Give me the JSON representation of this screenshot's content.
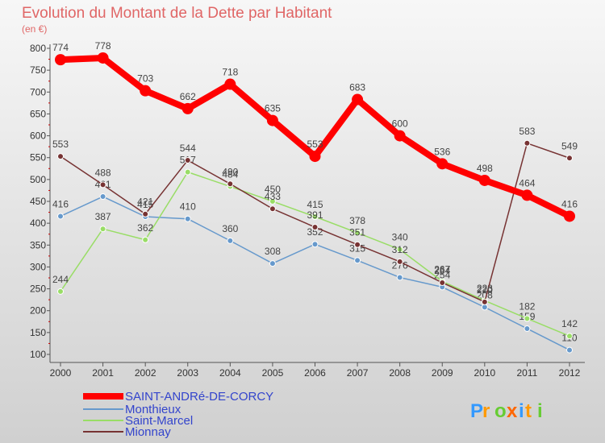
{
  "chart_data": {
    "type": "line",
    "title": "Evolution du Montant de la Dette par Habitant",
    "subtitle": "(en €)",
    "x": [
      "2000",
      "2001",
      "2002",
      "2003",
      "2004",
      "2005",
      "2006",
      "2007",
      "2008",
      "2009",
      "2010",
      "2011",
      "2012"
    ],
    "ylim": [
      100,
      800
    ],
    "yticks": [
      100,
      150,
      200,
      250,
      300,
      350,
      400,
      450,
      500,
      550,
      600,
      650,
      700,
      750,
      800
    ],
    "grid": false,
    "legend_position": "bottom-left",
    "series": [
      {
        "name": "SAINT-ANDRé-DE-CORCY",
        "color": "#ff0000",
        "values": [
          774,
          778,
          703,
          662,
          718,
          635,
          553,
          683,
          600,
          536,
          498,
          464,
          416
        ]
      },
      {
        "name": "Monthieux",
        "color": "#6699cc",
        "values": [
          416,
          461,
          415,
          410,
          360,
          308,
          352,
          315,
          276,
          254,
          208,
          159,
          110
        ]
      },
      {
        "name": "Saint-Marcel",
        "color": "#99dd66",
        "values": [
          244,
          387,
          362,
          517,
          484,
          450,
          415,
          378,
          340,
          267,
          223,
          182,
          142
        ]
      },
      {
        "name": "Mionnay",
        "color": "#773333",
        "values": [
          553,
          488,
          421,
          544,
          490,
          433,
          391,
          351,
          312,
          264,
          220,
          583,
          549
        ]
      }
    ]
  },
  "logo": {
    "text": "Proxiti"
  }
}
